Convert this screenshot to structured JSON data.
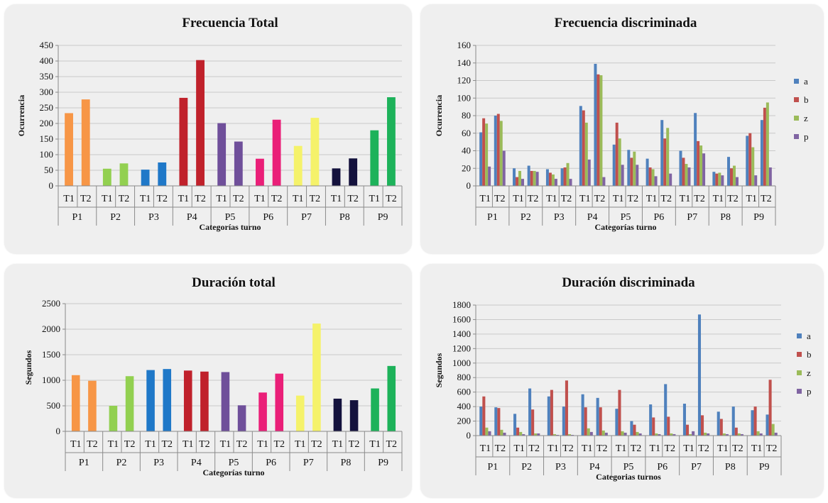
{
  "chart_data": [
    {
      "id": "freq_total",
      "type": "bar",
      "title": "Frecuencia Total",
      "ylabel": "Ocurrencia",
      "xlabel": "Categorías turno",
      "ylim": [
        0,
        450
      ],
      "yticks": [
        0,
        50,
        100,
        150,
        200,
        250,
        300,
        350,
        400,
        450
      ],
      "groups": [
        "P1",
        "P2",
        "P3",
        "P4",
        "P5",
        "P6",
        "P7",
        "P8",
        "P9"
      ],
      "subcategories": [
        "T1",
        "T2"
      ],
      "group_colors": [
        "#f79646",
        "#92d050",
        "#1f78c8",
        "#c0212b",
        "#6f4f9a",
        "#ea1f78",
        "#f5f26a",
        "#14123d",
        "#1db25a"
      ],
      "values": [
        [
          233,
          277
        ],
        [
          55,
          72
        ],
        [
          52,
          75
        ],
        [
          282,
          403
        ],
        [
          201,
          142
        ],
        [
          87,
          212
        ],
        [
          128,
          218
        ],
        [
          56,
          88
        ],
        [
          178,
          284
        ]
      ],
      "grid": true
    },
    {
      "id": "freq_disc",
      "type": "bar",
      "title": "Frecuencia discriminada",
      "ylabel": "Ocurrencia",
      "xlabel": "Categorías turno",
      "ylim": [
        0,
        160
      ],
      "yticks": [
        0,
        20,
        40,
        60,
        80,
        100,
        120,
        140,
        160
      ],
      "groups": [
        "P1",
        "P2",
        "P3",
        "P4",
        "P5",
        "P6",
        "P7",
        "P8",
        "P9"
      ],
      "subcategories": [
        "T1",
        "T2"
      ],
      "legend_position": "right",
      "series": [
        {
          "name": "a",
          "color": "#4f81bd",
          "values": [
            [
              61,
              80
            ],
            [
              20,
              23
            ],
            [
              19,
              20
            ],
            [
              91,
              139
            ],
            [
              47,
              41
            ],
            [
              31,
              75
            ],
            [
              40,
              83
            ],
            [
              16,
              33
            ],
            [
              57,
              75
            ]
          ]
        },
        {
          "name": "b",
          "color": "#c0504d",
          "values": [
            [
              77,
              82
            ],
            [
              10,
              17
            ],
            [
              15,
              21
            ],
            [
              86,
              127
            ],
            [
              72,
              32
            ],
            [
              21,
              54
            ],
            [
              32,
              51
            ],
            [
              14,
              20
            ],
            [
              60,
              89
            ]
          ]
        },
        {
          "name": "z",
          "color": "#9bbb59",
          "values": [
            [
              71,
              74
            ],
            [
              17,
              17
            ],
            [
              13,
              26
            ],
            [
              72,
              126
            ],
            [
              54,
              39
            ],
            [
              19,
              66
            ],
            [
              25,
              46
            ],
            [
              15,
              23
            ],
            [
              44,
              95
            ]
          ]
        },
        {
          "name": "p",
          "color": "#8064a2",
          "values": [
            [
              22,
              40
            ],
            [
              8,
              16
            ],
            [
              8,
              8
            ],
            [
              30,
              10
            ],
            [
              24,
              24
            ],
            [
              11,
              14
            ],
            [
              21,
              37
            ],
            [
              12,
              10
            ],
            [
              12,
              21
            ]
          ]
        }
      ],
      "grid": true
    },
    {
      "id": "dur_total",
      "type": "bar",
      "title": "Duración total",
      "ylabel": "Segundos",
      "xlabel": "Categorías turno",
      "ylim": [
        0,
        2500
      ],
      "yticks": [
        0,
        500,
        1000,
        1500,
        2000,
        2500
      ],
      "groups": [
        "P1",
        "P2",
        "P3",
        "P4",
        "P5",
        "P6",
        "P7",
        "P8",
        "P9"
      ],
      "subcategories": [
        "T1",
        "T2"
      ],
      "group_colors": [
        "#f79646",
        "#92d050",
        "#1f78c8",
        "#c0212b",
        "#6f4f9a",
        "#ea1f78",
        "#f5f26a",
        "#14123d",
        "#1db25a"
      ],
      "values": [
        [
          1100,
          990
        ],
        [
          500,
          1080
        ],
        [
          1200,
          1220
        ],
        [
          1190,
          1170
        ],
        [
          1160,
          510
        ],
        [
          760,
          1130
        ],
        [
          700,
          2110
        ],
        [
          640,
          610
        ],
        [
          840,
          1280
        ]
      ],
      "grid": true
    },
    {
      "id": "dur_disc",
      "type": "bar",
      "title": "Duración discriminada",
      "ylabel": "Segundos",
      "xlabel": "Categorias turnos",
      "ylim": [
        0,
        1800
      ],
      "yticks": [
        0,
        200,
        400,
        600,
        800,
        1000,
        1200,
        1400,
        1600,
        1800
      ],
      "groups": [
        "P1",
        "P2",
        "P3",
        "P4",
        "P5",
        "P6",
        "P7",
        "P8",
        "P9"
      ],
      "subcategories": [
        "T1",
        "T2"
      ],
      "legend_position": "right",
      "series": [
        {
          "name": "a",
          "color": "#4f81bd",
          "values": [
            [
              400,
              390
            ],
            [
              300,
              650
            ],
            [
              540,
              400
            ],
            [
              570,
              520
            ],
            [
              370,
              200
            ],
            [
              430,
              710
            ],
            [
              440,
              1670
            ],
            [
              330,
              400
            ],
            [
              350,
              290
            ]
          ]
        },
        {
          "name": "b",
          "color": "#c0504d",
          "values": [
            [
              540,
              380
            ],
            [
              110,
              360
            ],
            [
              630,
              760
            ],
            [
              390,
              390
            ],
            [
              630,
              150
            ],
            [
              250,
              260
            ],
            [
              150,
              280
            ],
            [
              230,
              110
            ],
            [
              400,
              770
            ]
          ]
        },
        {
          "name": "z",
          "color": "#9bbb59",
          "values": [
            [
              110,
              80
            ],
            [
              50,
              30
            ],
            [
              20,
              20
            ],
            [
              100,
              70
            ],
            [
              60,
              50
            ],
            [
              30,
              30
            ],
            [
              20,
              40
            ],
            [
              30,
              30
            ],
            [
              60,
              160
            ]
          ]
        },
        {
          "name": "p",
          "color": "#8064a2",
          "values": [
            [
              60,
              40
            ],
            [
              20,
              30
            ],
            [
              10,
              10
            ],
            [
              50,
              40
            ],
            [
              40,
              30
            ],
            [
              20,
              20
            ],
            [
              60,
              30
            ],
            [
              20,
              20
            ],
            [
              30,
              40
            ]
          ]
        }
      ],
      "grid": true
    }
  ]
}
